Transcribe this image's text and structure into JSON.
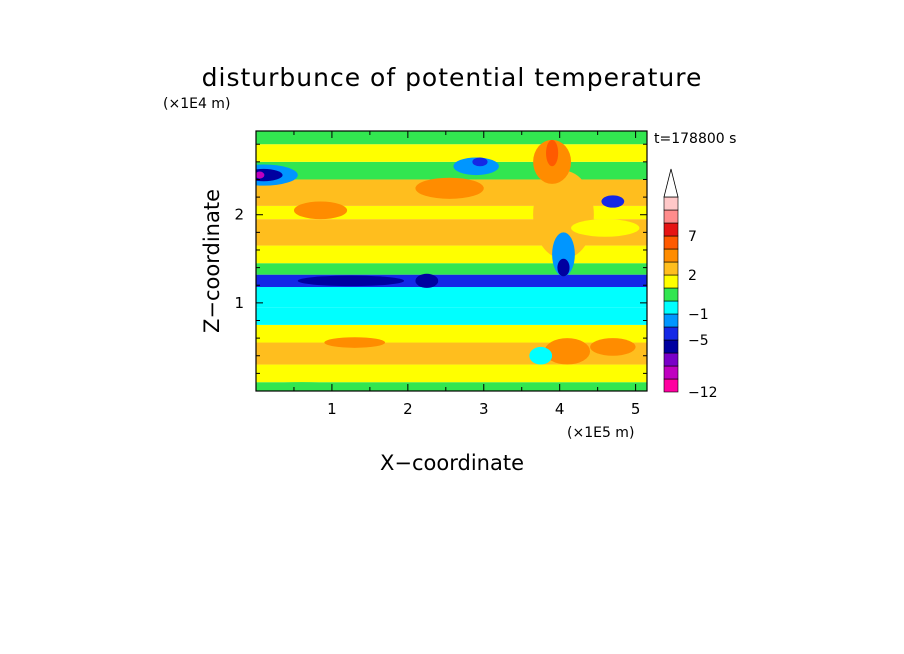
{
  "chart_data": {
    "type": "heatmap",
    "title": "disturbunce of potential temperature",
    "time_label": "t=178800 s",
    "xlabel": "X−coordinate",
    "ylabel": "Z−coordinate",
    "x_unit": "(×1E5 m)",
    "y_unit": "(×1E4 m)",
    "xlim": [
      0,
      5.15
    ],
    "ylim": [
      0,
      2.95
    ],
    "x_ticks": [
      1,
      2,
      3,
      4,
      5
    ],
    "y_ticks": [
      1,
      2
    ],
    "grid": false,
    "colorbar": {
      "labels": [
        {
          "value": "7",
          "level": 7
        },
        {
          "value": "2",
          "level": 2
        },
        {
          "value": "−1",
          "level": -1
        },
        {
          "value": "−5",
          "level": -5
        },
        {
          "value": "−12",
          "level": -12
        }
      ],
      "bands": [
        {
          "color": "#ff00a0",
          "level": -12
        },
        {
          "color": "#c000c0",
          "level": -9
        },
        {
          "color": "#7a00c8",
          "level": -7
        },
        {
          "color": "#0000a0",
          "level": -6
        },
        {
          "color": "#1428e6",
          "level": -5
        },
        {
          "color": "#0096ff",
          "level": -3
        },
        {
          "color": "#00ffff",
          "level": -1
        },
        {
          "color": "#32e650",
          "level": 0
        },
        {
          "color": "#ffff00",
          "level": 1
        },
        {
          "color": "#ffbe1e",
          "level": 2
        },
        {
          "color": "#ff8c00",
          "level": 4
        },
        {
          "color": "#ff5a00",
          "level": 5
        },
        {
          "color": "#e61414",
          "level": 7
        },
        {
          "color": "#ff8c8c",
          "level": 9
        },
        {
          "color": "#ffc8c8",
          "level": 10
        }
      ]
    },
    "layers": [
      {
        "z": [
          0.0,
          0.1
        ],
        "level": 0
      },
      {
        "z": [
          0.1,
          0.3
        ],
        "level": 1
      },
      {
        "z": [
          0.3,
          0.55
        ],
        "level": 2
      },
      {
        "z": [
          0.55,
          0.75
        ],
        "level": 1
      },
      {
        "z": [
          0.75,
          0.95
        ],
        "level": -1
      },
      {
        "z": [
          0.95,
          1.18
        ],
        "level": -1
      },
      {
        "z": [
          1.18,
          1.32
        ],
        "level": -5
      },
      {
        "z": [
          1.32,
          1.45
        ],
        "level": 0
      },
      {
        "z": [
          1.45,
          1.65
        ],
        "level": 1
      },
      {
        "z": [
          1.65,
          1.95
        ],
        "level": 2
      },
      {
        "z": [
          1.95,
          2.1
        ],
        "level": 1
      },
      {
        "z": [
          2.1,
          2.4
        ],
        "level": 2
      },
      {
        "z": [
          2.4,
          2.6
        ],
        "level": 0
      },
      {
        "z": [
          2.6,
          2.8
        ],
        "level": 1
      },
      {
        "z": [
          2.8,
          2.95
        ],
        "level": 0
      }
    ],
    "features": [
      {
        "x": 0.1,
        "z": 2.45,
        "rx": 0.45,
        "rz": 0.12,
        "level": -3
      },
      {
        "x": 0.1,
        "z": 2.45,
        "rx": 0.25,
        "rz": 0.07,
        "level": -6
      },
      {
        "x": 0.05,
        "z": 2.45,
        "rx": 0.06,
        "rz": 0.04,
        "level": -9
      },
      {
        "x": 2.55,
        "z": 2.3,
        "rx": 0.45,
        "rz": 0.12,
        "level": 4
      },
      {
        "x": 0.85,
        "z": 2.05,
        "rx": 0.35,
        "rz": 0.1,
        "level": 4
      },
      {
        "x": 2.9,
        "z": 2.55,
        "rx": 0.3,
        "rz": 0.1,
        "level": -3
      },
      {
        "x": 2.95,
        "z": 2.6,
        "rx": 0.1,
        "rz": 0.05,
        "level": -5
      },
      {
        "x": 4.05,
        "z": 2.0,
        "rx": 0.4,
        "rz": 0.5,
        "level": 2
      },
      {
        "x": 3.9,
        "z": 2.6,
        "rx": 0.25,
        "rz": 0.25,
        "level": 4
      },
      {
        "x": 3.9,
        "z": 2.7,
        "rx": 0.08,
        "rz": 0.15,
        "level": 5
      },
      {
        "x": 4.05,
        "z": 1.55,
        "rx": 0.15,
        "rz": 0.25,
        "level": -3
      },
      {
        "x": 4.05,
        "z": 1.4,
        "rx": 0.08,
        "rz": 0.1,
        "level": -6
      },
      {
        "x": 4.7,
        "z": 2.15,
        "rx": 0.15,
        "rz": 0.07,
        "level": -5
      },
      {
        "x": 4.6,
        "z": 1.85,
        "rx": 0.45,
        "rz": 0.1,
        "level": 1
      },
      {
        "x": 1.25,
        "z": 1.25,
        "rx": 0.7,
        "rz": 0.06,
        "level": -6
      },
      {
        "x": 2.25,
        "z": 1.25,
        "rx": 0.15,
        "rz": 0.08,
        "level": -6
      },
      {
        "x": 4.1,
        "z": 0.45,
        "rx": 0.3,
        "rz": 0.15,
        "level": 4
      },
      {
        "x": 4.7,
        "z": 0.5,
        "rx": 0.3,
        "rz": 0.1,
        "level": 4
      },
      {
        "x": 1.3,
        "z": 0.55,
        "rx": 0.4,
        "rz": 0.06,
        "level": 4
      },
      {
        "x": 0.6,
        "z": 0.05,
        "rx": 0.6,
        "rz": 0.05,
        "level": 0
      },
      {
        "x": 3.75,
        "z": 0.4,
        "rx": 0.15,
        "rz": 0.1,
        "level": -1
      }
    ]
  }
}
